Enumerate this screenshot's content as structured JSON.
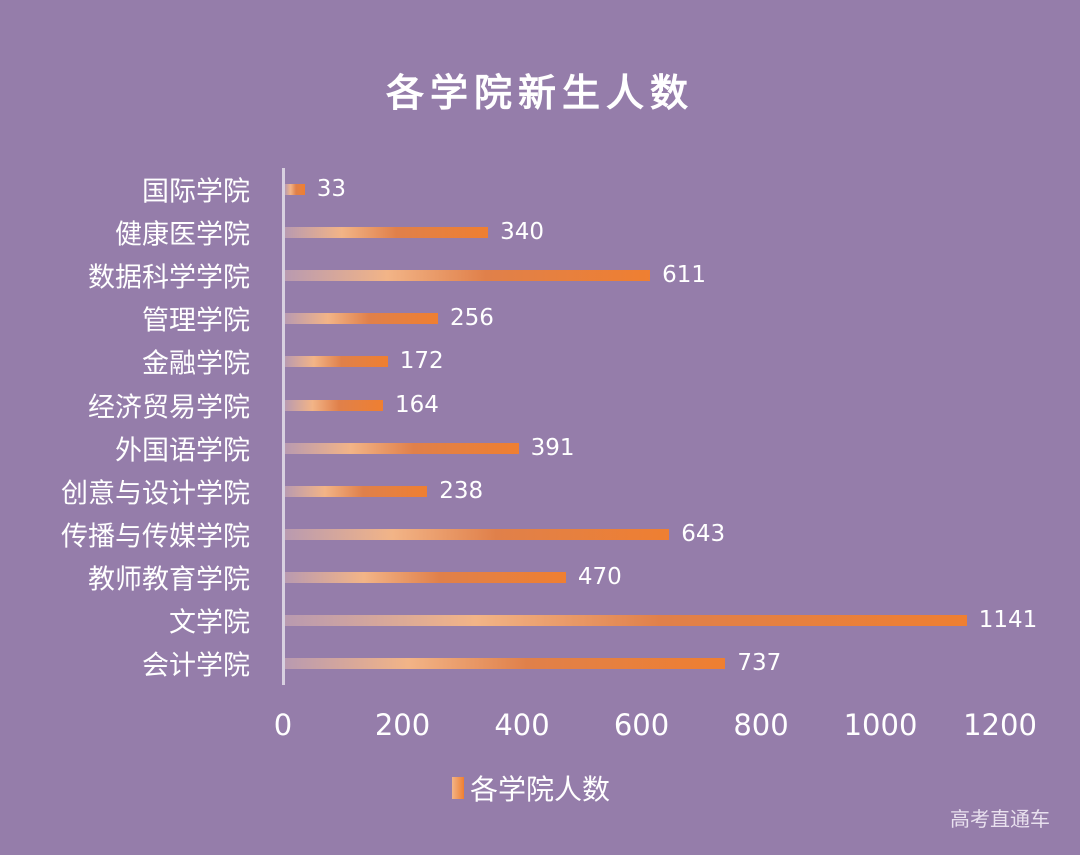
{
  "title": "各学院新生人数",
  "watermark": "高考直通车",
  "legend": {
    "label": "各学院人数"
  },
  "colors": {
    "background": "#957daa",
    "bar_start": "#b99ab0",
    "bar_mid": "#f2b487",
    "bar_end": "#ef7f31",
    "text": "#ffffff"
  },
  "axis": {
    "ticks": [
      "0",
      "200",
      "400",
      "600",
      "800",
      "1000",
      "1200"
    ]
  },
  "rows": [
    {
      "label": "国际学院",
      "value": "33"
    },
    {
      "label": "健康医学院",
      "value": "340"
    },
    {
      "label": "数据科学学院",
      "value": "611"
    },
    {
      "label": "管理学院",
      "value": "256"
    },
    {
      "label": "金融学院",
      "value": "172"
    },
    {
      "label": "经济贸易学院",
      "value": "164"
    },
    {
      "label": "外国语学院",
      "value": "391"
    },
    {
      "label": "创意与设计学院",
      "value": "238"
    },
    {
      "label": "传播与传媒学院",
      "value": "643"
    },
    {
      "label": "教师教育学院",
      "value": "470"
    },
    {
      "label": "文学院",
      "value": "1141"
    },
    {
      "label": "会计学院",
      "value": "737"
    }
  ],
  "chart_data": {
    "type": "bar",
    "orientation": "horizontal",
    "title": "各学院新生人数",
    "xlabel": "",
    "ylabel": "",
    "xlim": [
      0,
      1200
    ],
    "xticks": [
      0,
      200,
      400,
      600,
      800,
      1000,
      1200
    ],
    "grid": false,
    "legend_position": "bottom",
    "categories": [
      "国际学院",
      "健康医学院",
      "数据科学学院",
      "管理学院",
      "金融学院",
      "经济贸易学院",
      "外国语学院",
      "创意与设计学院",
      "传播与传媒学院",
      "教师教育学院",
      "文学院",
      "会计学院"
    ],
    "series": [
      {
        "name": "各学院人数",
        "values": [
          33,
          340,
          611,
          256,
          172,
          164,
          391,
          238,
          643,
          470,
          1141,
          737
        ]
      }
    ]
  }
}
